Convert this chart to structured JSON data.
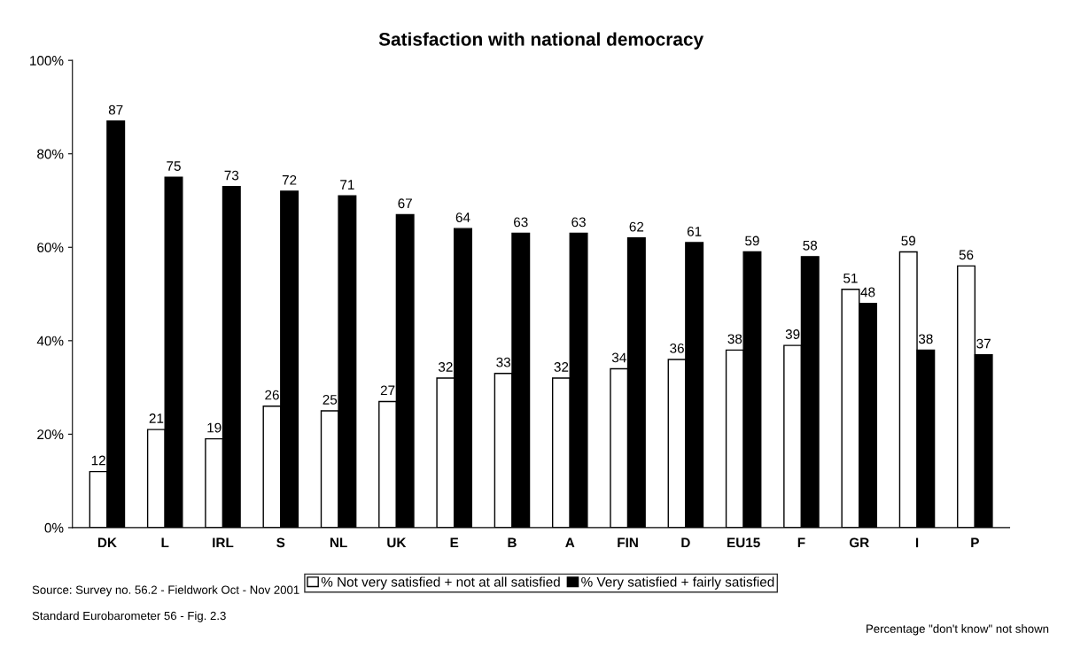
{
  "chart_data": {
    "type": "bar",
    "title": "Satisfaction with national democracy",
    "categories": [
      "DK",
      "L",
      "IRL",
      "S",
      "NL",
      "UK",
      "E",
      "B",
      "A",
      "FIN",
      "D",
      "EU15",
      "F",
      "GR",
      "I",
      "P"
    ],
    "series": [
      {
        "name": "% Not very satisfied + not at all satisfied",
        "color": "#ffffff",
        "values": [
          12,
          21,
          19,
          26,
          25,
          27,
          32,
          33,
          32,
          34,
          36,
          38,
          39,
          51,
          59,
          56
        ]
      },
      {
        "name": "% Very satisfied + fairly satisfied",
        "color": "#000000",
        "values": [
          87,
          75,
          73,
          72,
          71,
          67,
          64,
          63,
          63,
          62,
          61,
          59,
          58,
          48,
          38,
          37
        ]
      }
    ],
    "ylim": [
      0,
      100
    ],
    "yticks": [
      {
        "value": 0,
        "label": "0%"
      },
      {
        "value": 20,
        "label": "20%"
      },
      {
        "value": 40,
        "label": "40%"
      },
      {
        "value": 60,
        "label": "60%"
      },
      {
        "value": 80,
        "label": "80%"
      },
      {
        "value": 100,
        "label": "100%"
      }
    ],
    "data_labels": true,
    "grid": false,
    "legend": "bottom",
    "annotations": [
      "Source: Survey no. 56.2 - Fieldwork Oct - Nov 2001",
      "Standard Eurobarometer 56 - Fig. 2.3",
      "Percentage \"don't know\" not shown"
    ]
  }
}
